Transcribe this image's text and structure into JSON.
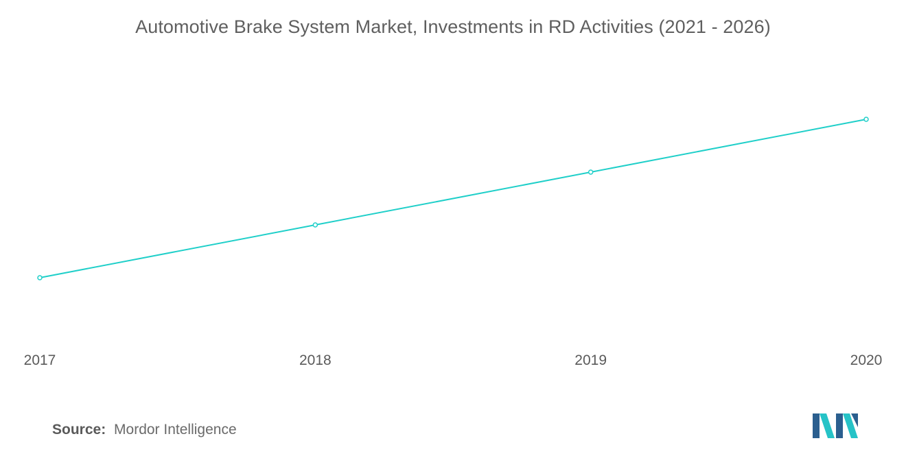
{
  "title": "Automotive Brake System Market, Investments in RD Activities (2021 - 2026)",
  "source": {
    "label": "Source:",
    "value": "Mordor Intelligence"
  },
  "colors": {
    "line": "#1fcfc9",
    "marker_fill": "#ffffff",
    "title": "#5f5f5f",
    "tick": "#5a5a5a",
    "logo_dark": "#2b5f8f",
    "logo_light": "#26c3c7"
  },
  "logo": {
    "name": "mordor-intelligence-logo"
  },
  "chart_data": {
    "type": "line",
    "title": "Automotive Brake System Market, Investments in RD Activities (2021 - 2026)",
    "xlabel": "",
    "ylabel": "",
    "categories": [
      "2017",
      "2018",
      "2019",
      "2020"
    ],
    "series": [
      {
        "values": [
          1,
          2,
          3,
          4
        ]
      }
    ],
    "ylim": [
      0,
      5
    ],
    "grid": false,
    "legend": "none",
    "y_axis_visible": false
  }
}
